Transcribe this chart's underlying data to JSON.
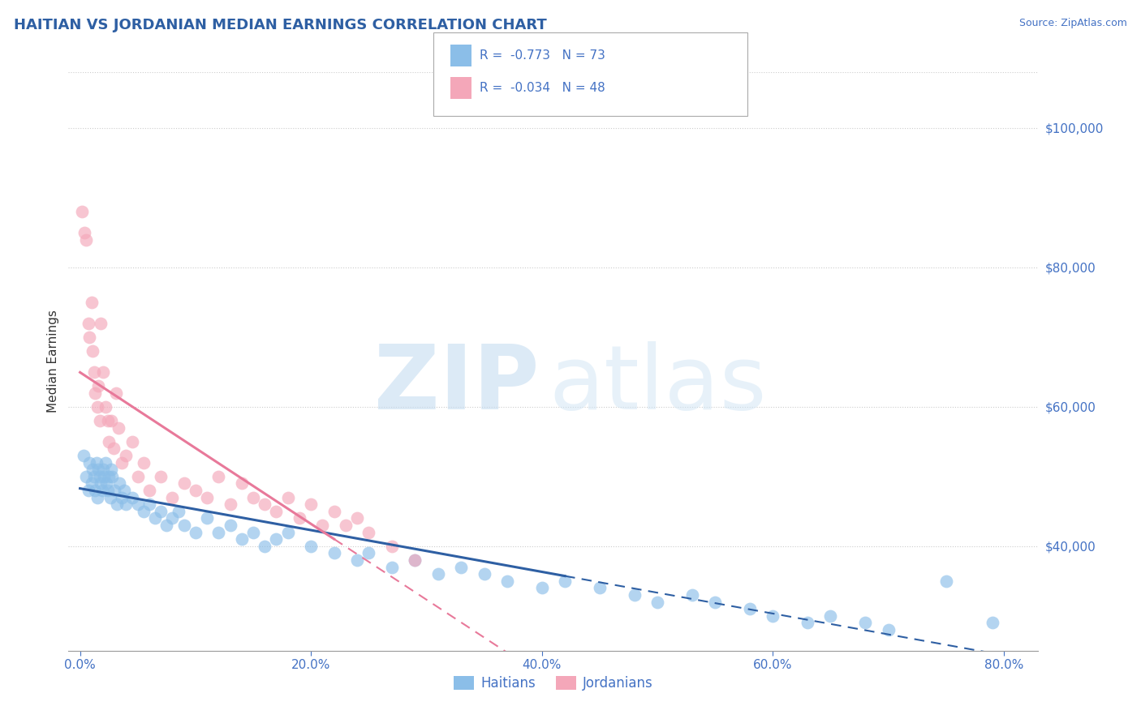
{
  "title": "HAITIAN VS JORDANIAN MEDIAN EARNINGS CORRELATION CHART",
  "source": "Source: ZipAtlas.com",
  "xlabel_ticks": [
    "0.0%",
    "20.0%",
    "40.0%",
    "60.0%",
    "80.0%"
  ],
  "xlabel_vals": [
    0.0,
    20.0,
    40.0,
    60.0,
    80.0
  ],
  "ylabel": "Median Earnings",
  "ylabel_ticks": [
    "$40,000",
    "$60,000",
    "$80,000",
    "$100,000"
  ],
  "ylabel_vals": [
    40000,
    60000,
    80000,
    100000
  ],
  "ylim": [
    25000,
    108000
  ],
  "xlim": [
    -1.0,
    83.0
  ],
  "title_color": "#2E5FA3",
  "tick_color": "#4472C4",
  "grid_color": "#CCCCCC",
  "haitians_color": "#8BBEE8",
  "jordanians_color": "#F4A7B9",
  "haitians_line_color": "#2E5FA3",
  "jordanians_line_color": "#E8799A",
  "haitians_R": -0.773,
  "haitians_N": 73,
  "jordanians_R": -0.034,
  "jordanians_N": 48,
  "legend_label_1": "Haitians",
  "legend_label_2": "Jordanians",
  "haitians_x": [
    0.3,
    0.5,
    0.7,
    0.8,
    1.0,
    1.1,
    1.2,
    1.3,
    1.4,
    1.5,
    1.6,
    1.7,
    1.8,
    1.9,
    2.0,
    2.1,
    2.2,
    2.3,
    2.4,
    2.5,
    2.6,
    2.7,
    2.8,
    3.0,
    3.2,
    3.4,
    3.6,
    3.8,
    4.0,
    4.5,
    5.0,
    5.5,
    6.0,
    6.5,
    7.0,
    7.5,
    8.0,
    8.5,
    9.0,
    10.0,
    11.0,
    12.0,
    13.0,
    14.0,
    15.0,
    16.0,
    17.0,
    18.0,
    20.0,
    22.0,
    24.0,
    25.0,
    27.0,
    29.0,
    31.0,
    33.0,
    35.0,
    37.0,
    40.0,
    42.0,
    45.0,
    48.0,
    50.0,
    53.0,
    55.0,
    58.0,
    60.0,
    63.0,
    65.0,
    68.0,
    70.0,
    75.0,
    79.0
  ],
  "haitians_y": [
    53000,
    50000,
    48000,
    52000,
    49000,
    51000,
    50000,
    48000,
    52000,
    47000,
    51000,
    50000,
    49000,
    48000,
    51000,
    50000,
    52000,
    49000,
    48000,
    50000,
    47000,
    51000,
    50000,
    48000,
    46000,
    49000,
    47000,
    48000,
    46000,
    47000,
    46000,
    45000,
    46000,
    44000,
    45000,
    43000,
    44000,
    45000,
    43000,
    42000,
    44000,
    42000,
    43000,
    41000,
    42000,
    40000,
    41000,
    42000,
    40000,
    39000,
    38000,
    39000,
    37000,
    38000,
    36000,
    37000,
    36000,
    35000,
    34000,
    35000,
    34000,
    33000,
    32000,
    33000,
    32000,
    31000,
    30000,
    29000,
    30000,
    29000,
    28000,
    35000,
    29000
  ],
  "jordanians_x": [
    0.2,
    0.4,
    0.5,
    0.7,
    0.8,
    1.0,
    1.1,
    1.2,
    1.3,
    1.5,
    1.6,
    1.7,
    1.8,
    2.0,
    2.2,
    2.4,
    2.5,
    2.7,
    2.9,
    3.1,
    3.3,
    3.6,
    4.0,
    4.5,
    5.0,
    5.5,
    6.0,
    7.0,
    8.0,
    9.0,
    10.0,
    11.0,
    12.0,
    13.0,
    14.0,
    15.0,
    16.0,
    17.0,
    18.0,
    19.0,
    20.0,
    21.0,
    22.0,
    23.0,
    24.0,
    25.0,
    27.0,
    29.0
  ],
  "jordanians_y": [
    88000,
    85000,
    84000,
    72000,
    70000,
    75000,
    68000,
    65000,
    62000,
    60000,
    63000,
    58000,
    72000,
    65000,
    60000,
    58000,
    55000,
    58000,
    54000,
    62000,
    57000,
    52000,
    53000,
    55000,
    50000,
    52000,
    48000,
    50000,
    47000,
    49000,
    48000,
    47000,
    50000,
    46000,
    49000,
    47000,
    46000,
    45000,
    47000,
    44000,
    46000,
    43000,
    45000,
    43000,
    44000,
    42000,
    40000,
    38000
  ]
}
